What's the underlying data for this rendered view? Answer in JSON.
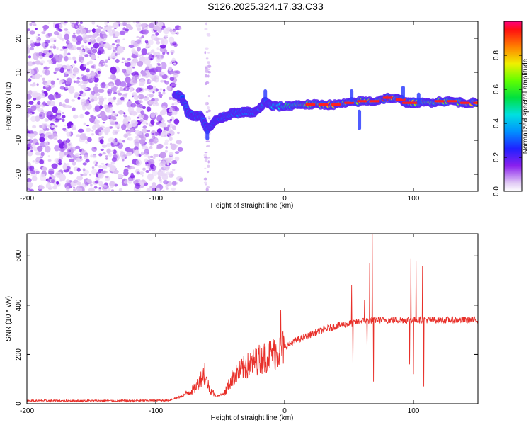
{
  "title": "S126.2025.324.17.33.C33",
  "chart_data": [
    {
      "type": "heatmap",
      "xlabel": "Height of straight line (km)",
      "ylabel": "Frequency (Hz)",
      "xlim": [
        -200,
        150
      ],
      "ylim": [
        -25,
        25
      ],
      "xticks": [
        -200,
        -100,
        0,
        100
      ],
      "yticks": [
        20,
        10,
        0,
        -10,
        -20
      ],
      "colorbar": {
        "label": "Normalized spectral amplitude",
        "range": [
          0,
          1
        ],
        "ticks": [
          "0.0",
          "0.2",
          "0.4",
          "0.6",
          "0.8"
        ]
      },
      "signal_track": [
        {
          "x": -85,
          "y": 3.5,
          "amp": 0.35
        },
        {
          "x": -80,
          "y": 3.0,
          "amp": 0.35
        },
        {
          "x": -75,
          "y": -2.0,
          "amp": 0.25
        },
        {
          "x": -70,
          "y": -3.0,
          "amp": 0.3
        },
        {
          "x": -65,
          "y": -2.5,
          "amp": 0.25
        },
        {
          "x": -60,
          "y": -7.0,
          "amp": 0.2
        },
        {
          "x": -55,
          "y": -4.5,
          "amp": 0.3
        },
        {
          "x": -50,
          "y": -3.5,
          "amp": 0.35
        },
        {
          "x": -45,
          "y": -2.8,
          "amp": 0.35
        },
        {
          "x": -40,
          "y": -2.0,
          "amp": 0.4
        },
        {
          "x": -35,
          "y": -2.0,
          "amp": 0.4
        },
        {
          "x": -30,
          "y": -1.5,
          "amp": 0.45
        },
        {
          "x": -25,
          "y": -2.0,
          "amp": 0.45
        },
        {
          "x": -20,
          "y": -1.0,
          "amp": 0.5
        },
        {
          "x": -15,
          "y": 1.5,
          "amp": 0.5
        },
        {
          "x": -10,
          "y": 0.0,
          "amp": 0.55
        },
        {
          "x": 0,
          "y": 0.0,
          "amp": 0.6
        },
        {
          "x": 10,
          "y": 0.5,
          "amp": 0.7
        },
        {
          "x": 20,
          "y": 0.5,
          "amp": 0.75
        },
        {
          "x": 30,
          "y": 0.5,
          "amp": 0.8
        },
        {
          "x": 40,
          "y": 0.5,
          "amp": 0.8
        },
        {
          "x": 50,
          "y": 1.0,
          "amp": 0.75
        },
        {
          "x": 60,
          "y": 1.5,
          "amp": 0.75
        },
        {
          "x": 70,
          "y": 1.5,
          "amp": 0.85
        },
        {
          "x": 80,
          "y": 2.5,
          "amp": 0.9
        },
        {
          "x": 90,
          "y": 2.0,
          "amp": 0.8
        },
        {
          "x": 95,
          "y": 1.0,
          "amp": 0.75
        },
        {
          "x": 100,
          "y": 1.0,
          "amp": 0.8
        },
        {
          "x": 110,
          "y": 1.0,
          "amp": 0.7
        },
        {
          "x": 120,
          "y": 1.5,
          "amp": 0.75
        },
        {
          "x": 130,
          "y": 1.5,
          "amp": 0.75
        },
        {
          "x": 140,
          "y": 1.0,
          "amp": 0.8
        },
        {
          "x": 150,
          "y": 1.0,
          "amp": 0.8
        }
      ],
      "noise_region_x": [
        -200,
        -88
      ]
    },
    {
      "type": "line",
      "xlabel": "Height of straight line (km)",
      "ylabel": "SNR (10 * v/v)",
      "xlim": [
        -200,
        150
      ],
      "ylim": [
        0,
        690
      ],
      "xticks": [
        -200,
        -100,
        0,
        100
      ],
      "yticks": [
        0,
        200,
        400,
        600
      ],
      "color": "#e8302a",
      "trend": [
        {
          "x": -200,
          "y": 12
        },
        {
          "x": -120,
          "y": 12
        },
        {
          "x": -90,
          "y": 14
        },
        {
          "x": -80,
          "y": 30
        },
        {
          "x": -70,
          "y": 60
        },
        {
          "x": -63,
          "y": 120
        },
        {
          "x": -58,
          "y": 60
        },
        {
          "x": -53,
          "y": 30
        },
        {
          "x": -47,
          "y": 40
        },
        {
          "x": -40,
          "y": 110
        },
        {
          "x": -30,
          "y": 150
        },
        {
          "x": -20,
          "y": 180
        },
        {
          "x": -10,
          "y": 200
        },
        {
          "x": 0,
          "y": 230
        },
        {
          "x": 10,
          "y": 260
        },
        {
          "x": 20,
          "y": 280
        },
        {
          "x": 30,
          "y": 300
        },
        {
          "x": 40,
          "y": 315
        },
        {
          "x": 50,
          "y": 325
        },
        {
          "x": 60,
          "y": 335
        },
        {
          "x": 70,
          "y": 340
        },
        {
          "x": 80,
          "y": 340
        },
        {
          "x": 90,
          "y": 340
        },
        {
          "x": 100,
          "y": 340
        },
        {
          "x": 110,
          "y": 340
        },
        {
          "x": 120,
          "y": 340
        },
        {
          "x": 130,
          "y": 340
        },
        {
          "x": 150,
          "y": 340
        }
      ],
      "spikes": [
        {
          "x": -62,
          "y": 165
        },
        {
          "x": -40,
          "y": 130
        },
        {
          "x": -30,
          "y": 180
        },
        {
          "x": -20,
          "y": 200
        },
        {
          "x": -3,
          "y": 380
        },
        {
          "x": 52,
          "y": 480
        },
        {
          "x": 53,
          "y": 160
        },
        {
          "x": 62,
          "y": 420
        },
        {
          "x": 64,
          "y": 230
        },
        {
          "x": 66,
          "y": 570
        },
        {
          "x": 68,
          "y": 690
        },
        {
          "x": 69,
          "y": 90
        },
        {
          "x": 97,
          "y": 160
        },
        {
          "x": 98,
          "y": 590
        },
        {
          "x": 100,
          "y": 120
        },
        {
          "x": 102,
          "y": 580
        },
        {
          "x": 107,
          "y": 560
        },
        {
          "x": 108,
          "y": 70
        }
      ]
    }
  ]
}
